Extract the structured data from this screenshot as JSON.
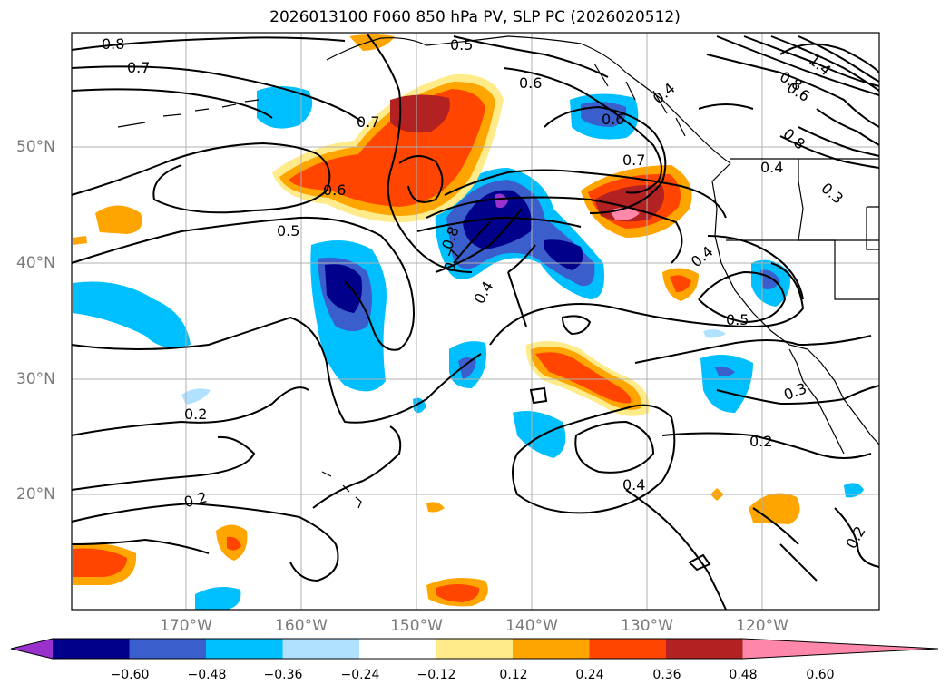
{
  "title": "2026013100 F060 850 hPa PV, SLP PC (2026020512)",
  "lat_labels": [
    "50°N",
    "40°N",
    "30°N",
    "20°N"
  ],
  "lon_labels": [
    "170°W",
    "160°W",
    "150°W",
    "140°W",
    "130°W",
    "120°W"
  ],
  "colorbar": {
    "ticks": [
      "−0.60",
      "−0.48",
      "−0.36",
      "−0.24",
      "−0.12",
      "0.12",
      "0.24",
      "0.36",
      "0.48",
      "0.60"
    ],
    "colors": [
      "#9932cc",
      "#00008b",
      "#3a5fcd",
      "#00bfff",
      "#b0e2ff",
      "#ffffff",
      "#ffeb8a",
      "#ffa500",
      "#ff4500",
      "#b22222",
      "#ff88aa"
    ]
  },
  "contour_labels": [
    "0.8",
    "0.7",
    "0.7",
    "0.6",
    "0.5",
    "0.5",
    "0.6",
    "0.6",
    "0.7",
    "0.4",
    "0.4",
    "0.3",
    "0.4",
    "0.5",
    "0.8",
    "0.7",
    "0.4",
    "0.2",
    "0.2",
    "0.4",
    "0.2",
    "0.3",
    "0.2",
    "1.4",
    "0.8",
    "0.6",
    "0.8"
  ]
}
